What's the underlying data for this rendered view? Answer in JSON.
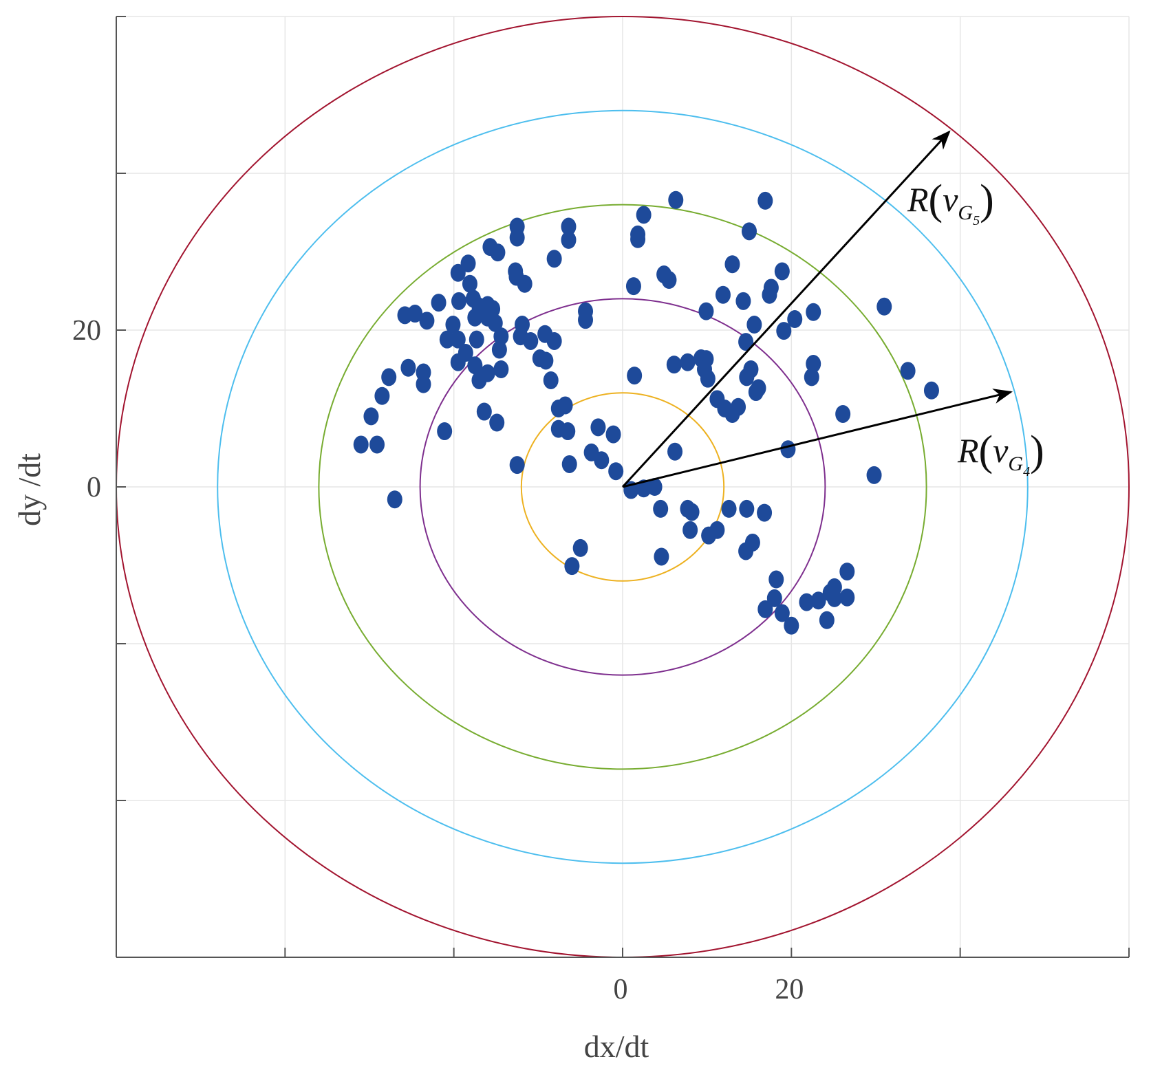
{
  "chart_data": {
    "type": "scatter",
    "title": "",
    "xlabel": "dx/dt",
    "ylabel": "dy /dt",
    "xlim": [
      -60,
      60
    ],
    "ylim": [
      -60,
      60
    ],
    "grid": true,
    "grid_step": 20,
    "xticks": [
      -40,
      -20,
      0,
      20,
      40
    ],
    "yticks": [
      -40,
      -20,
      0,
      20,
      40
    ],
    "xtick_labels": [
      {
        "value": 0,
        "label": "0"
      },
      {
        "value": 20,
        "label": "20"
      }
    ],
    "ytick_labels": [
      {
        "value": 0,
        "label": "0"
      },
      {
        "value": 20,
        "label": "20"
      }
    ],
    "marker_color": "#1E4A9A",
    "circles": [
      {
        "radius": 12,
        "color": "#EDB120"
      },
      {
        "radius": 24,
        "color": "#7E2F8E"
      },
      {
        "radius": 36,
        "color": "#77AC30"
      },
      {
        "radius": 48,
        "color": "#4DBEEE"
      },
      {
        "radius": 60,
        "color": "#A2142F"
      }
    ],
    "arrows": [
      {
        "to": [
          38.7,
          45.3
        ],
        "label": {
          "func": "R",
          "arg": "v",
          "sub": "G",
          "index": "5"
        }
      },
      {
        "to": [
          46.0,
          12.1
        ],
        "label": {
          "func": "R",
          "arg": "v",
          "sub": "G",
          "index": "4"
        }
      }
    ],
    "points": [
      [
        -31.0,
        5.4
      ],
      [
        -29.1,
        5.4
      ],
      [
        -27.0,
        -1.6
      ],
      [
        -29.8,
        9.0
      ],
      [
        -28.5,
        11.6
      ],
      [
        -27.7,
        14.0
      ],
      [
        -25.4,
        15.2
      ],
      [
        -23.6,
        14.6
      ],
      [
        -23.6,
        13.1
      ],
      [
        -21.1,
        7.1
      ],
      [
        -25.8,
        21.9
      ],
      [
        -24.6,
        22.1
      ],
      [
        -23.2,
        21.2
      ],
      [
        -21.8,
        23.5
      ],
      [
        -20.8,
        18.8
      ],
      [
        -20.1,
        20.7
      ],
      [
        -19.5,
        27.3
      ],
      [
        -18.3,
        28.5
      ],
      [
        -18.1,
        25.9
      ],
      [
        -19.4,
        23.7
      ],
      [
        -17.7,
        24.0
      ],
      [
        -17.0,
        23.0
      ],
      [
        -16.0,
        23.2
      ],
      [
        -15.4,
        22.7
      ],
      [
        -17.5,
        21.6
      ],
      [
        -16.0,
        21.6
      ],
      [
        -15.1,
        20.9
      ],
      [
        -19.5,
        18.8
      ],
      [
        -17.3,
        18.8
      ],
      [
        -19.5,
        15.9
      ],
      [
        -18.6,
        17.1
      ],
      [
        -17.5,
        15.5
      ],
      [
        -17.0,
        13.6
      ],
      [
        -16.0,
        14.5
      ],
      [
        -14.4,
        15.0
      ],
      [
        -14.6,
        17.5
      ],
      [
        -14.4,
        19.2
      ],
      [
        -16.4,
        9.6
      ],
      [
        -14.9,
        8.2
      ],
      [
        -15.7,
        30.6
      ],
      [
        -14.8,
        29.9
      ],
      [
        -12.5,
        33.2
      ],
      [
        -12.5,
        31.8
      ],
      [
        -12.7,
        27.5
      ],
      [
        -11.6,
        25.9
      ],
      [
        -12.6,
        26.8
      ],
      [
        -11.9,
        20.7
      ],
      [
        -12.1,
        19.2
      ],
      [
        -10.9,
        18.6
      ],
      [
        -9.8,
        16.4
      ],
      [
        -9.1,
        16.1
      ],
      [
        -9.2,
        19.5
      ],
      [
        -8.1,
        18.6
      ],
      [
        -8.5,
        13.6
      ],
      [
        -8.1,
        29.1
      ],
      [
        -6.4,
        33.2
      ],
      [
        -6.4,
        31.5
      ],
      [
        -4.4,
        22.4
      ],
      [
        -4.4,
        21.3
      ],
      [
        -7.6,
        10.0
      ],
      [
        -6.8,
        10.4
      ],
      [
        -7.6,
        7.4
      ],
      [
        -6.5,
        7.1
      ],
      [
        -12.5,
        2.8
      ],
      [
        -6.3,
        2.9
      ],
      [
        -2.9,
        7.6
      ],
      [
        -1.1,
        6.7
      ],
      [
        -3.7,
        4.4
      ],
      [
        -2.5,
        3.4
      ],
      [
        -0.8,
        2.0
      ],
      [
        -5.0,
        -7.8
      ],
      [
        -6.0,
        -10.1
      ],
      [
        1.0,
        -0.4
      ],
      [
        2.5,
        -0.2
      ],
      [
        3.8,
        0.0
      ],
      [
        4.5,
        -2.8
      ],
      [
        4.6,
        -8.9
      ],
      [
        1.4,
        14.2
      ],
      [
        1.3,
        25.6
      ],
      [
        1.8,
        32.2
      ],
      [
        1.8,
        31.6
      ],
      [
        2.5,
        34.7
      ],
      [
        6.3,
        36.6
      ],
      [
        4.9,
        27.1
      ],
      [
        5.5,
        26.4
      ],
      [
        6.1,
        15.6
      ],
      [
        7.7,
        15.9
      ],
      [
        9.3,
        16.4
      ],
      [
        9.9,
        16.3
      ],
      [
        9.7,
        15.0
      ],
      [
        10.1,
        13.8
      ],
      [
        6.2,
        4.5
      ],
      [
        9.9,
        22.4
      ],
      [
        7.7,
        -2.8
      ],
      [
        8.2,
        -3.2
      ],
      [
        8.0,
        -5.5
      ],
      [
        10.2,
        -6.2
      ],
      [
        11.2,
        -5.5
      ],
      [
        11.2,
        11.2
      ],
      [
        12.1,
        10.0
      ],
      [
        13.0,
        9.3
      ],
      [
        13.7,
        10.2
      ],
      [
        12.6,
        -2.8
      ],
      [
        14.7,
        -2.8
      ],
      [
        16.8,
        -3.3
      ],
      [
        14.6,
        -8.2
      ],
      [
        15.4,
        -7.1
      ],
      [
        14.7,
        14.0
      ],
      [
        15.2,
        15.0
      ],
      [
        15.8,
        12.1
      ],
      [
        16.1,
        12.6
      ],
      [
        14.6,
        18.5
      ],
      [
        15.6,
        20.7
      ],
      [
        14.3,
        23.7
      ],
      [
        11.9,
        24.5
      ],
      [
        13.0,
        28.4
      ],
      [
        15.0,
        32.6
      ],
      [
        16.9,
        36.5
      ],
      [
        17.4,
        24.5
      ],
      [
        17.6,
        25.4
      ],
      [
        18.9,
        27.5
      ],
      [
        19.1,
        19.9
      ],
      [
        20.4,
        21.4
      ],
      [
        22.6,
        22.3
      ],
      [
        22.6,
        15.7
      ],
      [
        22.4,
        14.0
      ],
      [
        19.6,
        4.8
      ],
      [
        18.2,
        -11.8
      ],
      [
        18.0,
        -14.2
      ],
      [
        16.9,
        -15.6
      ],
      [
        18.9,
        -16.1
      ],
      [
        20.0,
        -17.7
      ],
      [
        21.8,
        -14.7
      ],
      [
        23.2,
        -14.5
      ],
      [
        24.2,
        -17.0
      ],
      [
        24.6,
        -13.5
      ],
      [
        25.1,
        -12.8
      ],
      [
        25.1,
        -14.2
      ],
      [
        26.6,
        -14.1
      ],
      [
        26.6,
        -10.8
      ],
      [
        26.1,
        9.3
      ],
      [
        29.8,
        1.5
      ],
      [
        31.0,
        23.0
      ],
      [
        33.8,
        14.8
      ],
      [
        36.6,
        12.3
      ]
    ]
  }
}
